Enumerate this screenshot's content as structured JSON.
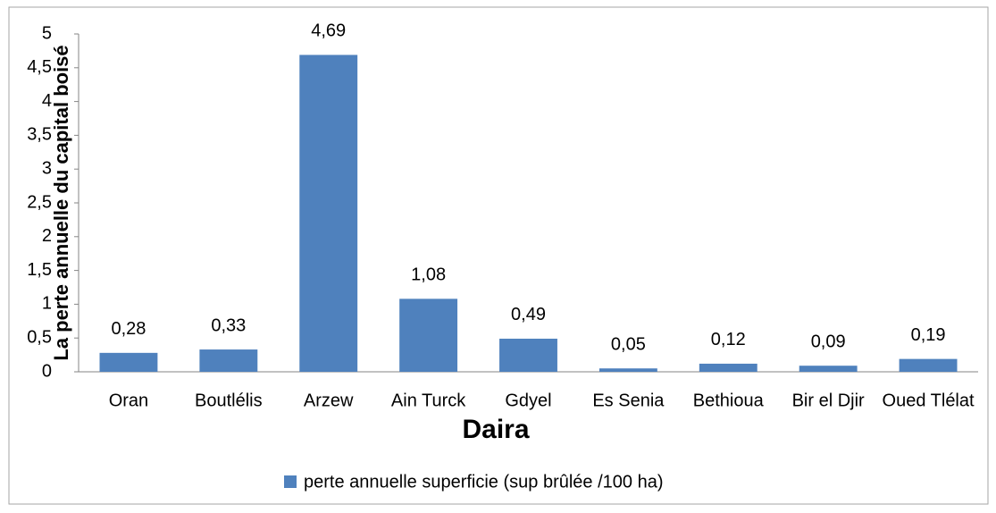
{
  "chart_data": {
    "type": "bar",
    "categories": [
      "Oran",
      "Boutlélis",
      "Arzew",
      "Ain Turck",
      "Gdyel",
      "Es Senia",
      "Bethioua",
      "Bir el Djir",
      "Oued Tlélat"
    ],
    "values": [
      0.28,
      0.33,
      4.69,
      1.08,
      0.49,
      0.05,
      0.12,
      0.09,
      0.19
    ],
    "value_labels": [
      "0,28",
      "0,33",
      "4,69",
      "1,08",
      "0,49",
      "0,05",
      "0,12",
      "0,09",
      "0,19"
    ],
    "series_name": "perte annuelle superficie (sup brûlée /100 ha)",
    "color": "#4f81bd",
    "xlabel": "Daira",
    "ylabel": "La perte annuelle du capital boisé",
    "ylim": [
      0,
      5
    ],
    "yticks": [
      0,
      {
        "value": 0.5,
        "label": "0,5"
      },
      1,
      {
        "value": 1.5,
        "label": "1,5"
      },
      2,
      {
        "value": 2.5,
        "label": "2,5"
      },
      3,
      {
        "value": 3.5,
        "label": "3,5"
      },
      4,
      {
        "value": 4.5,
        "label": "4,5"
      },
      5
    ],
    "grid": false,
    "legend": "bottom"
  }
}
